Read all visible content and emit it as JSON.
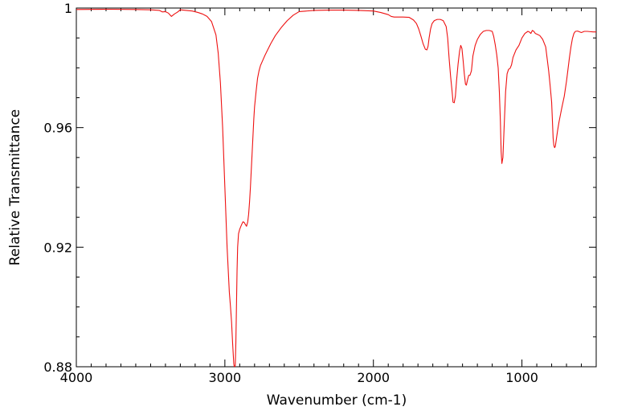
{
  "chart_data": {
    "type": "line",
    "title": "",
    "xlabel": "Wavenumber (cm-1)",
    "ylabel": "Relative Transmittance",
    "xlim": [
      4000,
      500
    ],
    "ylim": [
      0.88,
      1.0
    ],
    "x_reversed": true,
    "grid": false,
    "legend": "none",
    "x_ticks": [
      4000,
      3000,
      2000,
      1000
    ],
    "x_tick_labels": [
      "4000",
      "3000",
      "2000",
      "1000"
    ],
    "y_ticks": [
      0.88,
      0.92,
      0.96,
      1.0
    ],
    "y_tick_labels": [
      "0.88",
      "0.92",
      "0.96",
      "1"
    ],
    "line_color": "#ee1111",
    "series": [
      {
        "x": [
          4000,
          3800,
          3600,
          3500,
          3440,
          3420,
          3400,
          3380,
          3360,
          3340,
          3320,
          3300,
          3260,
          3220,
          3180,
          3150,
          3120,
          3090,
          3060,
          3045,
          3030,
          3015,
          3000,
          2985,
          2970,
          2962,
          2955,
          2948,
          2940,
          2935,
          2930,
          2926,
          2922,
          2918,
          2914,
          2908,
          2900,
          2892,
          2885,
          2878,
          2870,
          2862,
          2854,
          2846,
          2840,
          2834,
          2828,
          2822,
          2816,
          2810,
          2805,
          2800,
          2790,
          2780,
          2770,
          2760,
          2745,
          2730,
          2710,
          2690,
          2660,
          2620,
          2580,
          2540,
          2500,
          2400,
          2300,
          2200,
          2100,
          2000,
          1950,
          1900,
          1880,
          1860,
          1840,
          1800,
          1760,
          1730,
          1710,
          1695,
          1680,
          1665,
          1650,
          1640,
          1632,
          1625,
          1615,
          1605,
          1590,
          1570,
          1550,
          1530,
          1510,
          1500,
          1490,
          1480,
          1470,
          1464,
          1456,
          1448,
          1440,
          1430,
          1420,
          1412,
          1404,
          1396,
          1388,
          1380,
          1374,
          1366,
          1358,
          1350,
          1340,
          1330,
          1315,
          1300,
          1280,
          1260,
          1240,
          1220,
          1200,
          1190,
          1180,
          1170,
          1160,
          1152,
          1145,
          1140,
          1135,
          1128,
          1120,
          1110,
          1100,
          1090,
          1080,
          1070,
          1060,
          1040,
          1020,
          1000,
          980,
          960,
          950,
          940,
          930,
          920,
          910,
          900,
          880,
          860,
          840,
          830,
          820,
          810,
          800,
          795,
          790,
          785,
          780,
          775,
          770,
          760,
          750,
          740,
          730,
          715,
          700,
          690,
          680,
          670,
          660,
          650,
          640,
          625,
          610,
          600,
          580,
          560,
          540,
          520,
          500
        ],
        "y": [
          0.9995,
          0.9996,
          0.9995,
          0.9994,
          0.9992,
          0.9987,
          0.9988,
          0.9983,
          0.9972,
          0.998,
          0.9986,
          0.9994,
          0.9992,
          0.999,
          0.9985,
          0.998,
          0.9972,
          0.9955,
          0.991,
          0.985,
          0.975,
          0.96,
          0.94,
          0.92,
          0.905,
          0.9,
          0.895,
          0.888,
          0.881,
          0.8795,
          0.8805,
          0.888,
          0.9,
          0.912,
          0.92,
          0.9245,
          0.926,
          0.927,
          0.9278,
          0.9285,
          0.9283,
          0.9276,
          0.927,
          0.9285,
          0.931,
          0.935,
          0.94,
          0.946,
          0.952,
          0.958,
          0.963,
          0.967,
          0.972,
          0.9765,
          0.979,
          0.9808,
          0.9825,
          0.9842,
          0.9862,
          0.9882,
          0.9908,
          0.9935,
          0.9958,
          0.9976,
          0.9988,
          0.9992,
          0.9993,
          0.9993,
          0.9992,
          0.999,
          0.9985,
          0.9978,
          0.9972,
          0.997,
          0.997,
          0.997,
          0.9969,
          0.996,
          0.9948,
          0.993,
          0.9906,
          0.988,
          0.9862,
          0.986,
          0.9872,
          0.99,
          0.993,
          0.9948,
          0.9958,
          0.9962,
          0.9962,
          0.9958,
          0.9938,
          0.99,
          0.983,
          0.977,
          0.972,
          0.9685,
          0.9683,
          0.9705,
          0.9758,
          0.9812,
          0.9855,
          0.9875,
          0.9865,
          0.9825,
          0.978,
          0.9745,
          0.9742,
          0.976,
          0.9775,
          0.9775,
          0.979,
          0.984,
          0.9875,
          0.9895,
          0.9912,
          0.9922,
          0.9925,
          0.9925,
          0.9922,
          0.9905,
          0.9878,
          0.9845,
          0.98,
          0.972,
          0.962,
          0.952,
          0.948,
          0.95,
          0.96,
          0.972,
          0.978,
          0.9795,
          0.9798,
          0.981,
          0.9835,
          0.986,
          0.9875,
          0.99,
          0.9915,
          0.9922,
          0.992,
          0.9915,
          0.9925,
          0.9922,
          0.9915,
          0.9913,
          0.9908,
          0.9895,
          0.987,
          0.983,
          0.979,
          0.974,
          0.9685,
          0.9625,
          0.9565,
          0.954,
          0.9533,
          0.9538,
          0.9555,
          0.959,
          0.962,
          0.9645,
          0.967,
          0.9705,
          0.9755,
          0.9795,
          0.9835,
          0.987,
          0.9898,
          0.9915,
          0.9922,
          0.9923,
          0.992,
          0.9918,
          0.9922,
          0.9922,
          0.9921,
          0.992,
          0.992
        ]
      }
    ]
  }
}
